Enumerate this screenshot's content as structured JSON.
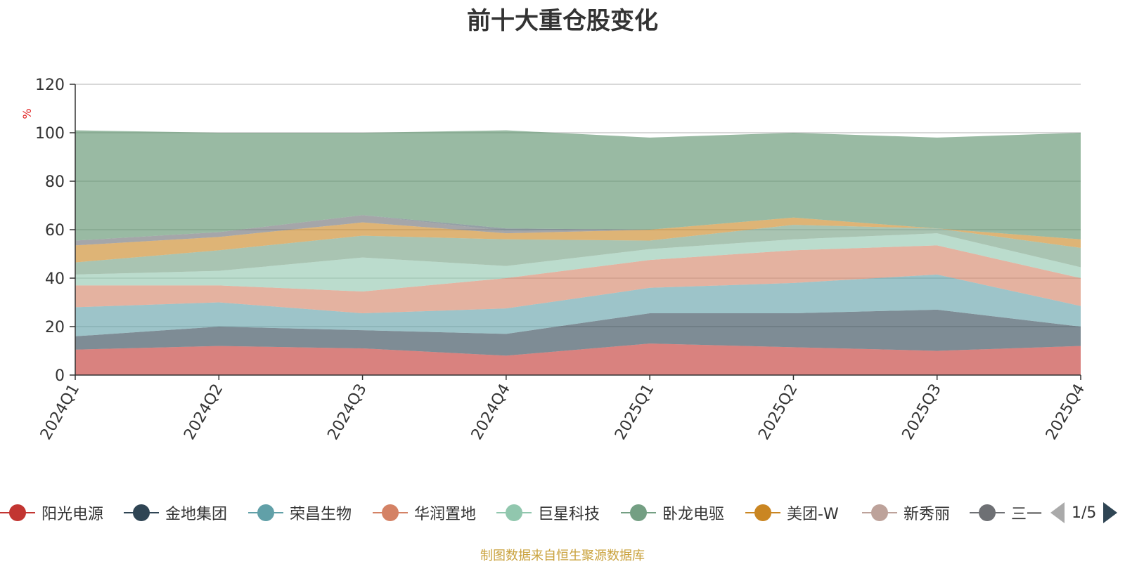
{
  "chart_data": {
    "type": "area",
    "title": "前十大重仓股变化",
    "ylabel": "%",
    "ylim": [
      0,
      120
    ],
    "yticks": [
      0,
      20,
      40,
      60,
      80,
      100,
      120
    ],
    "categories": [
      "2024Q1",
      "2024Q2",
      "2024Q3",
      "2024Q4",
      "2025Q1",
      "2025Q2",
      "2025Q3",
      "2025Q4"
    ],
    "stack_order": "bottom-to-top",
    "series": [
      {
        "name": "阳光电源",
        "color": "#c23531",
        "in_legend": true,
        "values": [
          10.5,
          12.0,
          11.0,
          8.0,
          13.0,
          11.5,
          10.0,
          12.0
        ]
      },
      {
        "name": "金地集团",
        "color": "#2f4554",
        "in_legend": true,
        "values": [
          5.5,
          8.0,
          7.5,
          9.0,
          12.5,
          14.0,
          17.0,
          8.0
        ]
      },
      {
        "name": "荣昌生物",
        "color": "#61a0a8",
        "in_legend": true,
        "values": [
          12.0,
          10.0,
          7.0,
          10.5,
          10.5,
          12.5,
          14.5,
          8.5
        ]
      },
      {
        "name": "华润置地",
        "color": "#d48265",
        "in_legend": true,
        "values": [
          9.0,
          7.0,
          9.0,
          12.5,
          11.5,
          13.5,
          12.0,
          11.5
        ]
      },
      {
        "name": "巨星科技",
        "color": "#91c7ae",
        "in_legend": true,
        "values": [
          4.5,
          6.0,
          14.0,
          5.0,
          4.5,
          4.5,
          5.0,
          4.5
        ]
      },
      {
        "name": "卧龙电驱",
        "color": "#749f83",
        "in_legend": true,
        "values": [
          5.0,
          8.5,
          9.0,
          11.0,
          3.5,
          6.0,
          2.0,
          8.0
        ]
      },
      {
        "name": "美团-W",
        "color": "#ca8622",
        "in_legend": true,
        "values": [
          7.0,
          5.5,
          5.5,
          2.5,
          4.5,
          3.0,
          0.0,
          3.5
        ]
      },
      {
        "name": "新秀丽",
        "color": "#bda29a",
        "in_legend": true,
        "values": [
          0.0,
          0.0,
          0.0,
          0.0,
          0.0,
          0.0,
          0.0,
          0.0
        ]
      },
      {
        "name": "三一",
        "color": "#6e7074",
        "in_legend": true,
        "values": [
          2.0,
          2.0,
          3.0,
          1.0,
          0.0,
          0.0,
          0.0,
          0.0
        ]
      },
      {
        "name": "",
        "color": "#546570",
        "in_legend": false,
        "values": [
          0.0,
          0.0,
          0.0,
          1.0,
          0.0,
          0.0,
          0.0,
          0.0
        ]
      },
      {
        "name": "",
        "color": "#c4ccd3",
        "in_legend": false,
        "values": [
          0.0,
          0.0,
          0.0,
          0.0,
          0.0,
          0.0,
          0.0,
          0.0
        ]
      },
      {
        "name": "",
        "color": "#5b8f6a",
        "in_legend": false,
        "values": [
          45.5,
          41.0,
          34.0,
          40.5,
          38.0,
          35.0,
          37.5,
          44.0
        ]
      }
    ]
  },
  "legend": {
    "items": [
      {
        "label": "阳光电源",
        "color": "#c23531"
      },
      {
        "label": "金地集团",
        "color": "#2f4554"
      },
      {
        "label": "荣昌生物",
        "color": "#61a0a8"
      },
      {
        "label": "华润置地",
        "color": "#d48265"
      },
      {
        "label": "巨星科技",
        "color": "#91c7ae"
      },
      {
        "label": "卧龙电驱",
        "color": "#749f83"
      },
      {
        "label": "美团-W",
        "color": "#ca8622"
      },
      {
        "label": "新秀丽",
        "color": "#bda29a"
      },
      {
        "label": "三一",
        "color": "#6e7074"
      }
    ],
    "page_indicator": "1/5"
  },
  "footer": {
    "source_note": "制图数据来自恒生聚源数据库"
  }
}
